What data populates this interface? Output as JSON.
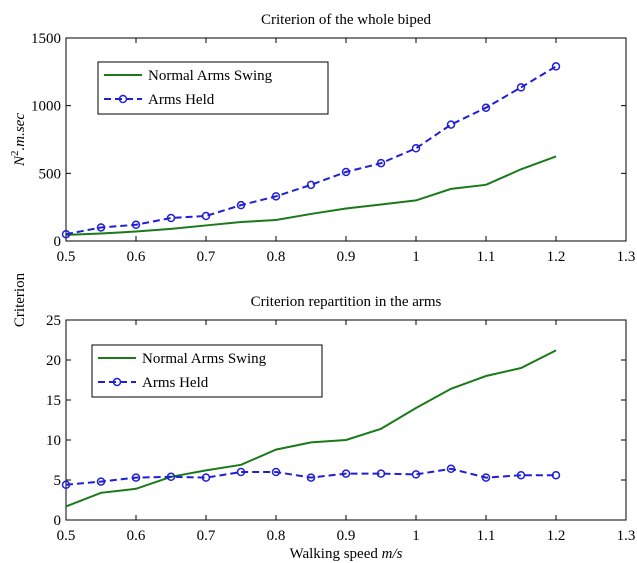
{
  "chart_data": [
    {
      "type": "line",
      "title": "Criterion of the whole biped",
      "ylabel": "N².m.sec",
      "xlabel": "",
      "xlim": [
        0.5,
        1.3
      ],
      "ylim": [
        0,
        1500
      ],
      "xticks": [
        "0.5",
        "0.6",
        "0.7",
        "0.8",
        "0.9",
        "1",
        "1.1",
        "1.2",
        "1.3"
      ],
      "yticks": [
        "0",
        "500",
        "1000",
        "1500"
      ],
      "grid": false,
      "legend_position": "top-left",
      "x": [
        0.5,
        0.55,
        0.6,
        0.65,
        0.7,
        0.75,
        0.8,
        0.85,
        0.9,
        0.95,
        1.0,
        1.05,
        1.1,
        1.15,
        1.2
      ],
      "series": [
        {
          "name": "Normal Arms Swing",
          "color": "#1a7a1a",
          "style": "solid",
          "marker": "none",
          "values": [
            45,
            55,
            70,
            90,
            115,
            140,
            155,
            200,
            240,
            270,
            300,
            385,
            415,
            530,
            625
          ]
        },
        {
          "name": "Arms Held",
          "color": "#1f1fd6",
          "style": "dashed",
          "marker": "circle",
          "values": [
            50,
            100,
            120,
            170,
            185,
            265,
            330,
            415,
            510,
            575,
            685,
            860,
            985,
            1135,
            1290
          ]
        }
      ]
    },
    {
      "type": "line",
      "title": "Criterion repartition in the arms",
      "ylabel": "Criterion",
      "xlabel": "Walking speed m/s",
      "xlim": [
        0.5,
        1.3
      ],
      "ylim": [
        0,
        25
      ],
      "xticks": [
        "0.5",
        "0.6",
        "0.7",
        "0.8",
        "0.9",
        "1",
        "1.1",
        "1.2",
        "1.3"
      ],
      "yticks": [
        "0",
        "5",
        "10",
        "15",
        "20",
        "25"
      ],
      "grid": false,
      "legend_position": "top-left",
      "x": [
        0.5,
        0.55,
        0.6,
        0.65,
        0.7,
        0.75,
        0.8,
        0.85,
        0.9,
        0.95,
        1.0,
        1.05,
        1.1,
        1.15,
        1.2
      ],
      "series": [
        {
          "name": "Normal Arms Swing",
          "color": "#1a7a1a",
          "style": "solid",
          "marker": "none",
          "values": [
            1.7,
            3.4,
            3.9,
            5.4,
            6.2,
            6.9,
            8.8,
            9.7,
            10.0,
            11.4,
            14.0,
            16.4,
            18.0,
            19.0,
            21.2
          ]
        },
        {
          "name": "Arms Held",
          "color": "#1f1fd6",
          "style": "dashed",
          "marker": "circle",
          "values": [
            4.4,
            4.8,
            5.3,
            5.4,
            5.3,
            6.0,
            6.0,
            5.3,
            5.8,
            5.8,
            5.7,
            6.4,
            5.3,
            5.6,
            5.6
          ]
        }
      ]
    }
  ]
}
